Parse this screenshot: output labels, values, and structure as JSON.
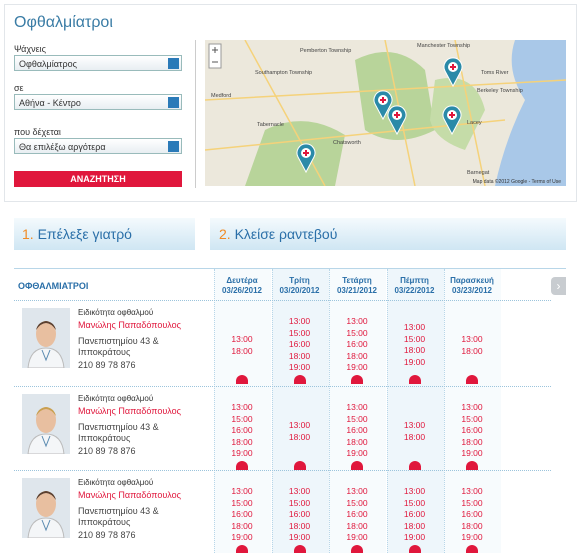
{
  "header": {
    "title": "Οφθαλμίατροι"
  },
  "search": {
    "fields": [
      {
        "label": "Ψάχνεις",
        "value": "Οφθαλμίατρος"
      },
      {
        "label": "σε",
        "value": "Αθήνα - Κέντρο"
      },
      {
        "label": "που δέχεται",
        "value": "Θα επιλέξω αργότερα"
      }
    ],
    "button": "ΑΝΑΖΗΤΗΣΗ"
  },
  "map": {
    "labels": [
      "Pemberton Township",
      "Manchester Township",
      "Toms River",
      "Medford",
      "Southampton Township",
      "Berkeley Township",
      "Lacey",
      "Chatsworth",
      "Tabernacle",
      "Barnegat"
    ],
    "attribution": "Map data ©2012 Google - Terms of Use"
  },
  "steps": [
    {
      "number": "1.",
      "label": "Επέλεξε γιατρό"
    },
    {
      "number": "2.",
      "label": "Κλείσε ραντεβού"
    }
  ],
  "table": {
    "heading": "ΟΦΘΑΛΜΙΑΤΡΟΙ",
    "days": [
      {
        "name": "Δευτέρα",
        "date": "03/26/2012"
      },
      {
        "name": "Τρίτη",
        "date": "03/20/2012"
      },
      {
        "name": "Τετάρτη",
        "date": "03/21/2012"
      },
      {
        "name": "Πέμπτη",
        "date": "03/22/2012"
      },
      {
        "name": "Παρασκευή",
        "date": "03/23/2012"
      }
    ],
    "doctors": [
      {
        "specialty": "Ειδικότητα οφθαλμού",
        "name": "Μανώλης Παπαδόπουλος",
        "address": [
          "Πανεπιστημίου 43 &",
          "Ιπποκράτους"
        ],
        "phone": "210 89 78 876",
        "slots": [
          [
            "13:00",
            "18:00"
          ],
          [
            "13:00",
            "15:00",
            "16:00",
            "18:00",
            "19:00"
          ],
          [
            "13:00",
            "15:00",
            "16:00",
            "18:00",
            "19:00"
          ],
          [
            "13:00",
            "15:00",
            "18:00",
            "19:00"
          ],
          [
            "13:00",
            "18:00"
          ]
        ]
      },
      {
        "specialty": "Ειδικότητα οφθαλμού",
        "name": "Μανώλης Παπαδόπουλος",
        "address": [
          "Πανεπιστημίου 43 &",
          "Ιπποκράτους"
        ],
        "phone": "210 89 78 876",
        "slots": [
          [
            "13:00",
            "15:00",
            "16:00",
            "18:00",
            "19:00"
          ],
          [
            "13:00",
            "18:00"
          ],
          [
            "13:00",
            "15:00",
            "16:00",
            "18:00",
            "19:00"
          ],
          [
            "13:00",
            "18:00"
          ],
          [
            "13:00",
            "15:00",
            "16:00",
            "18:00",
            "19:00"
          ]
        ]
      },
      {
        "specialty": "Ειδικότητα οφθαλμού",
        "name": "Μανώλης Παπαδόπουλος",
        "address": [
          "Πανεπιστημίου 43 &",
          "Ιπποκράτους"
        ],
        "phone": "210 89 78 876",
        "slots": [
          [
            "13:00",
            "15:00",
            "16:00",
            "18:00",
            "19:00"
          ],
          [
            "13:00",
            "15:00",
            "16:00",
            "18:00",
            "19:00"
          ],
          [
            "13:00",
            "15:00",
            "16:00",
            "18:00",
            "19:00"
          ],
          [
            "13:00",
            "15:00",
            "16:00",
            "18:00",
            "19:00"
          ],
          [
            "13:00",
            "15:00",
            "16:00",
            "18:00",
            "19:00"
          ]
        ]
      }
    ]
  }
}
